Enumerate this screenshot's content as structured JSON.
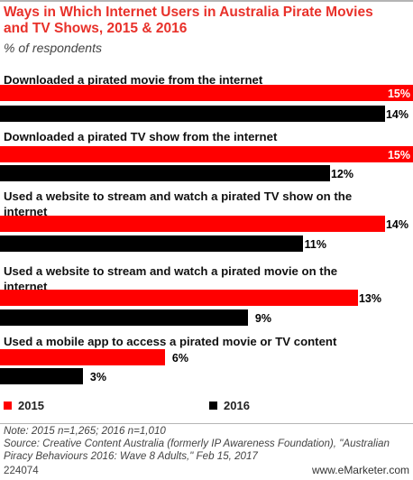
{
  "title": "Ways in Which Internet Users in Australia Pirate Movies and TV Shows, 2015 & 2016",
  "subtitle": "% of respondents",
  "legend": [
    {
      "label": "2015",
      "color": "#ff0000"
    },
    {
      "label": "2016",
      "color": "#000000"
    }
  ],
  "note": "Note: 2015 n=1,265; 2016 n=1,010",
  "source": "Source: Creative Content Australia (formerly IP Awareness Foundation), \"Australian Piracy Behaviours 2016: Wave 8 Adults,\" Feb 15, 2017",
  "chart_id": "224074",
  "brand": "www.eMarketer.com",
  "chart_data": {
    "type": "bar",
    "orientation": "horizontal",
    "unit": "%",
    "categories": [
      "Downloaded a pirated movie from the internet",
      "Downloaded a pirated TV show from the internet",
      "Used a website to stream and watch a pirated TV show on the internet",
      "Used a website to stream and watch a pirated movie on the internet",
      "Used a mobile app to access a pirated movie or TV content"
    ],
    "series": [
      {
        "name": "2015",
        "color": "#ff0000",
        "values": [
          15,
          15,
          14,
          13,
          6
        ]
      },
      {
        "name": "2016",
        "color": "#000000",
        "values": [
          14,
          12,
          11,
          9,
          3
        ]
      }
    ],
    "xlim": [
      0,
      15
    ],
    "grid": false,
    "legend_position": "bottom"
  }
}
